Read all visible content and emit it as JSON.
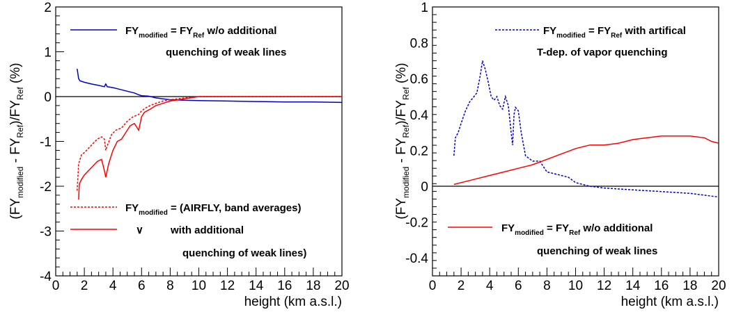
{
  "chart_data": [
    {
      "type": "line",
      "xlabel": "height (km a.s.l.)",
      "xlim": [
        0,
        20
      ],
      "ylim": [
        -4,
        2
      ],
      "x_ticks": [
        "0",
        "2",
        "4",
        "6",
        "8",
        "10",
        "12",
        "14",
        "16",
        "18",
        "20"
      ],
      "y_ticks": [
        "-4",
        "-3",
        "-2",
        "-1",
        "0",
        "1",
        "2"
      ],
      "ylabel": {
        "parts": [
          "(FY",
          "modified",
          " - FY",
          "Ref",
          ")/FY",
          "Ref",
          "   (%)"
        ]
      },
      "legend": [
        {
          "text": [
            "FY",
            "modified",
            " = FY",
            "Ref",
            " w/o additional"
          ],
          "line2": "quenching of weak lines",
          "color": "#0000cc",
          "dash": "solid"
        },
        {
          "text": [
            "FY",
            "modified",
            " = (AIRFLY, band averages)"
          ],
          "color": "#ff0000",
          "dash": "dashed"
        },
        {
          "text": [
            "∨",
            "",
            "   with additional"
          ],
          "line2": "quenching of weak lines)",
          "color": "#ff0000",
          "dash": "solid"
        }
      ],
      "series": [
        {
          "color": "#0000cc",
          "dash": "solid",
          "x": [
            1.5,
            1.6,
            1.7,
            2.0,
            2.5,
            3.0,
            3.4,
            3.5,
            3.6,
            4.0,
            4.5,
            5.0,
            5.5,
            5.8,
            6.0,
            6.5,
            7.0,
            7.5,
            8.0,
            9.0,
            10.0,
            12.0,
            14.0,
            16.0,
            18.0,
            20.0
          ],
          "y": [
            0.62,
            0.4,
            0.35,
            0.32,
            0.28,
            0.25,
            0.22,
            0.28,
            0.22,
            0.2,
            0.16,
            0.12,
            0.08,
            0.04,
            0.02,
            0.01,
            -0.03,
            -0.05,
            -0.07,
            -0.08,
            -0.09,
            -0.1,
            -0.11,
            -0.12,
            -0.12,
            -0.13
          ]
        },
        {
          "color": "#ff0000",
          "dash": "dashed",
          "x": [
            1.5,
            1.6,
            1.8,
            2.0,
            2.3,
            2.6,
            2.9,
            3.2,
            3.4,
            3.5,
            3.6,
            3.9,
            4.2,
            4.6,
            5.0,
            5.4,
            5.8,
            6.0,
            6.3,
            6.6,
            7.0,
            7.5,
            8.0,
            9.0,
            10.0,
            11.0,
            12.0,
            14.0,
            16.0,
            18.0,
            20.0
          ],
          "y": [
            -2.1,
            -1.5,
            -1.3,
            -1.25,
            -1.15,
            -1.05,
            -0.95,
            -0.9,
            -0.95,
            -1.2,
            -1.1,
            -0.85,
            -0.75,
            -0.7,
            -0.55,
            -0.45,
            -0.4,
            -0.32,
            -0.25,
            -0.2,
            -0.15,
            -0.1,
            -0.07,
            -0.03,
            0.0,
            0.0,
            0.0,
            0.0,
            0.0,
            0.0,
            0.0
          ]
        },
        {
          "color": "#ff0000",
          "dash": "solid",
          "x": [
            1.6,
            1.65,
            1.8,
            2.0,
            2.3,
            2.6,
            2.9,
            3.2,
            3.4,
            3.5,
            3.7,
            4.0,
            4.3,
            4.6,
            4.9,
            5.2,
            5.5,
            5.8,
            6.0,
            6.2,
            6.6,
            7.0,
            7.5,
            8.0,
            9.0,
            10.0,
            11.0,
            12.0,
            14.0,
            16.0,
            18.0,
            20.0
          ],
          "y": [
            -2.3,
            -1.95,
            -1.85,
            -1.75,
            -1.65,
            -1.55,
            -1.45,
            -1.4,
            -1.65,
            -1.8,
            -1.5,
            -1.2,
            -1.0,
            -0.95,
            -0.8,
            -0.65,
            -0.6,
            -0.75,
            -0.45,
            -0.35,
            -0.28,
            -0.2,
            -0.15,
            -0.1,
            -0.05,
            0.0,
            0.0,
            0.0,
            0.0,
            0.0,
            0.0,
            0.0
          ]
        }
      ]
    },
    {
      "type": "line",
      "xlabel": "height (km a.s.l.)",
      "xlim": [
        0,
        20
      ],
      "ylim": [
        -0.5,
        1.0
      ],
      "x_ticks": [
        "0",
        "2",
        "4",
        "6",
        "8",
        "10",
        "12",
        "14",
        "16",
        "18",
        "20"
      ],
      "y_ticks": [
        "-0.4",
        "-0.2",
        "0",
        "0.2",
        "0.4",
        "0.6",
        "0.8",
        "1"
      ],
      "ylabel": {
        "parts": [
          "(FY",
          "modified",
          " - FY",
          "Ref",
          ")/FY",
          "Ref",
          "   (%)"
        ]
      },
      "legend": [
        {
          "text": [
            "FY",
            "modified",
            " = FY",
            "Ref",
            " with artifical"
          ],
          "line2": "T-dep. of vapor quenching",
          "color": "#0000cc",
          "dash": "dashed"
        },
        {
          "text": [
            "FY",
            "modified",
            " = FY",
            "Ref",
            " w/o additional"
          ],
          "line2": "quenching of weak lines",
          "color": "#ff0000",
          "dash": "solid"
        }
      ],
      "series": [
        {
          "color": "#0000cc",
          "dash": "dashed",
          "x": [
            1.5,
            1.6,
            1.8,
            2.0,
            2.3,
            2.6,
            2.9,
            3.1,
            3.3,
            3.5,
            3.7,
            3.9,
            4.1,
            4.3,
            4.5,
            4.7,
            4.9,
            5.1,
            5.3,
            5.5,
            5.6,
            5.7,
            5.8,
            6.0,
            6.2,
            6.5,
            7.0,
            7.5,
            8.0,
            8.5,
            9.0,
            9.5,
            10.0,
            11.0,
            12.0,
            14.0,
            16.0,
            18.0,
            20.0
          ],
          "y": [
            0.17,
            0.27,
            0.3,
            0.35,
            0.42,
            0.47,
            0.5,
            0.52,
            0.6,
            0.7,
            0.65,
            0.58,
            0.5,
            0.48,
            0.5,
            0.45,
            0.43,
            0.5,
            0.45,
            0.3,
            0.23,
            0.4,
            0.44,
            0.42,
            0.3,
            0.17,
            0.14,
            0.14,
            0.08,
            0.07,
            0.06,
            0.05,
            0.02,
            0.0,
            -0.01,
            -0.02,
            -0.03,
            -0.04,
            -0.06
          ]
        },
        {
          "color": "#ff0000",
          "dash": "solid",
          "x": [
            1.5,
            2.0,
            3.0,
            4.0,
            5.0,
            6.0,
            7.0,
            8.0,
            9.0,
            10.0,
            10.5,
            11.0,
            11.5,
            12.0,
            13.0,
            14.0,
            15.0,
            16.0,
            17.0,
            18.0,
            19.0,
            19.5,
            20.0
          ],
          "y": [
            0.01,
            0.02,
            0.04,
            0.06,
            0.08,
            0.1,
            0.12,
            0.15,
            0.18,
            0.21,
            0.22,
            0.23,
            0.23,
            0.23,
            0.24,
            0.26,
            0.27,
            0.28,
            0.28,
            0.28,
            0.27,
            0.25,
            0.24
          ]
        }
      ]
    }
  ]
}
